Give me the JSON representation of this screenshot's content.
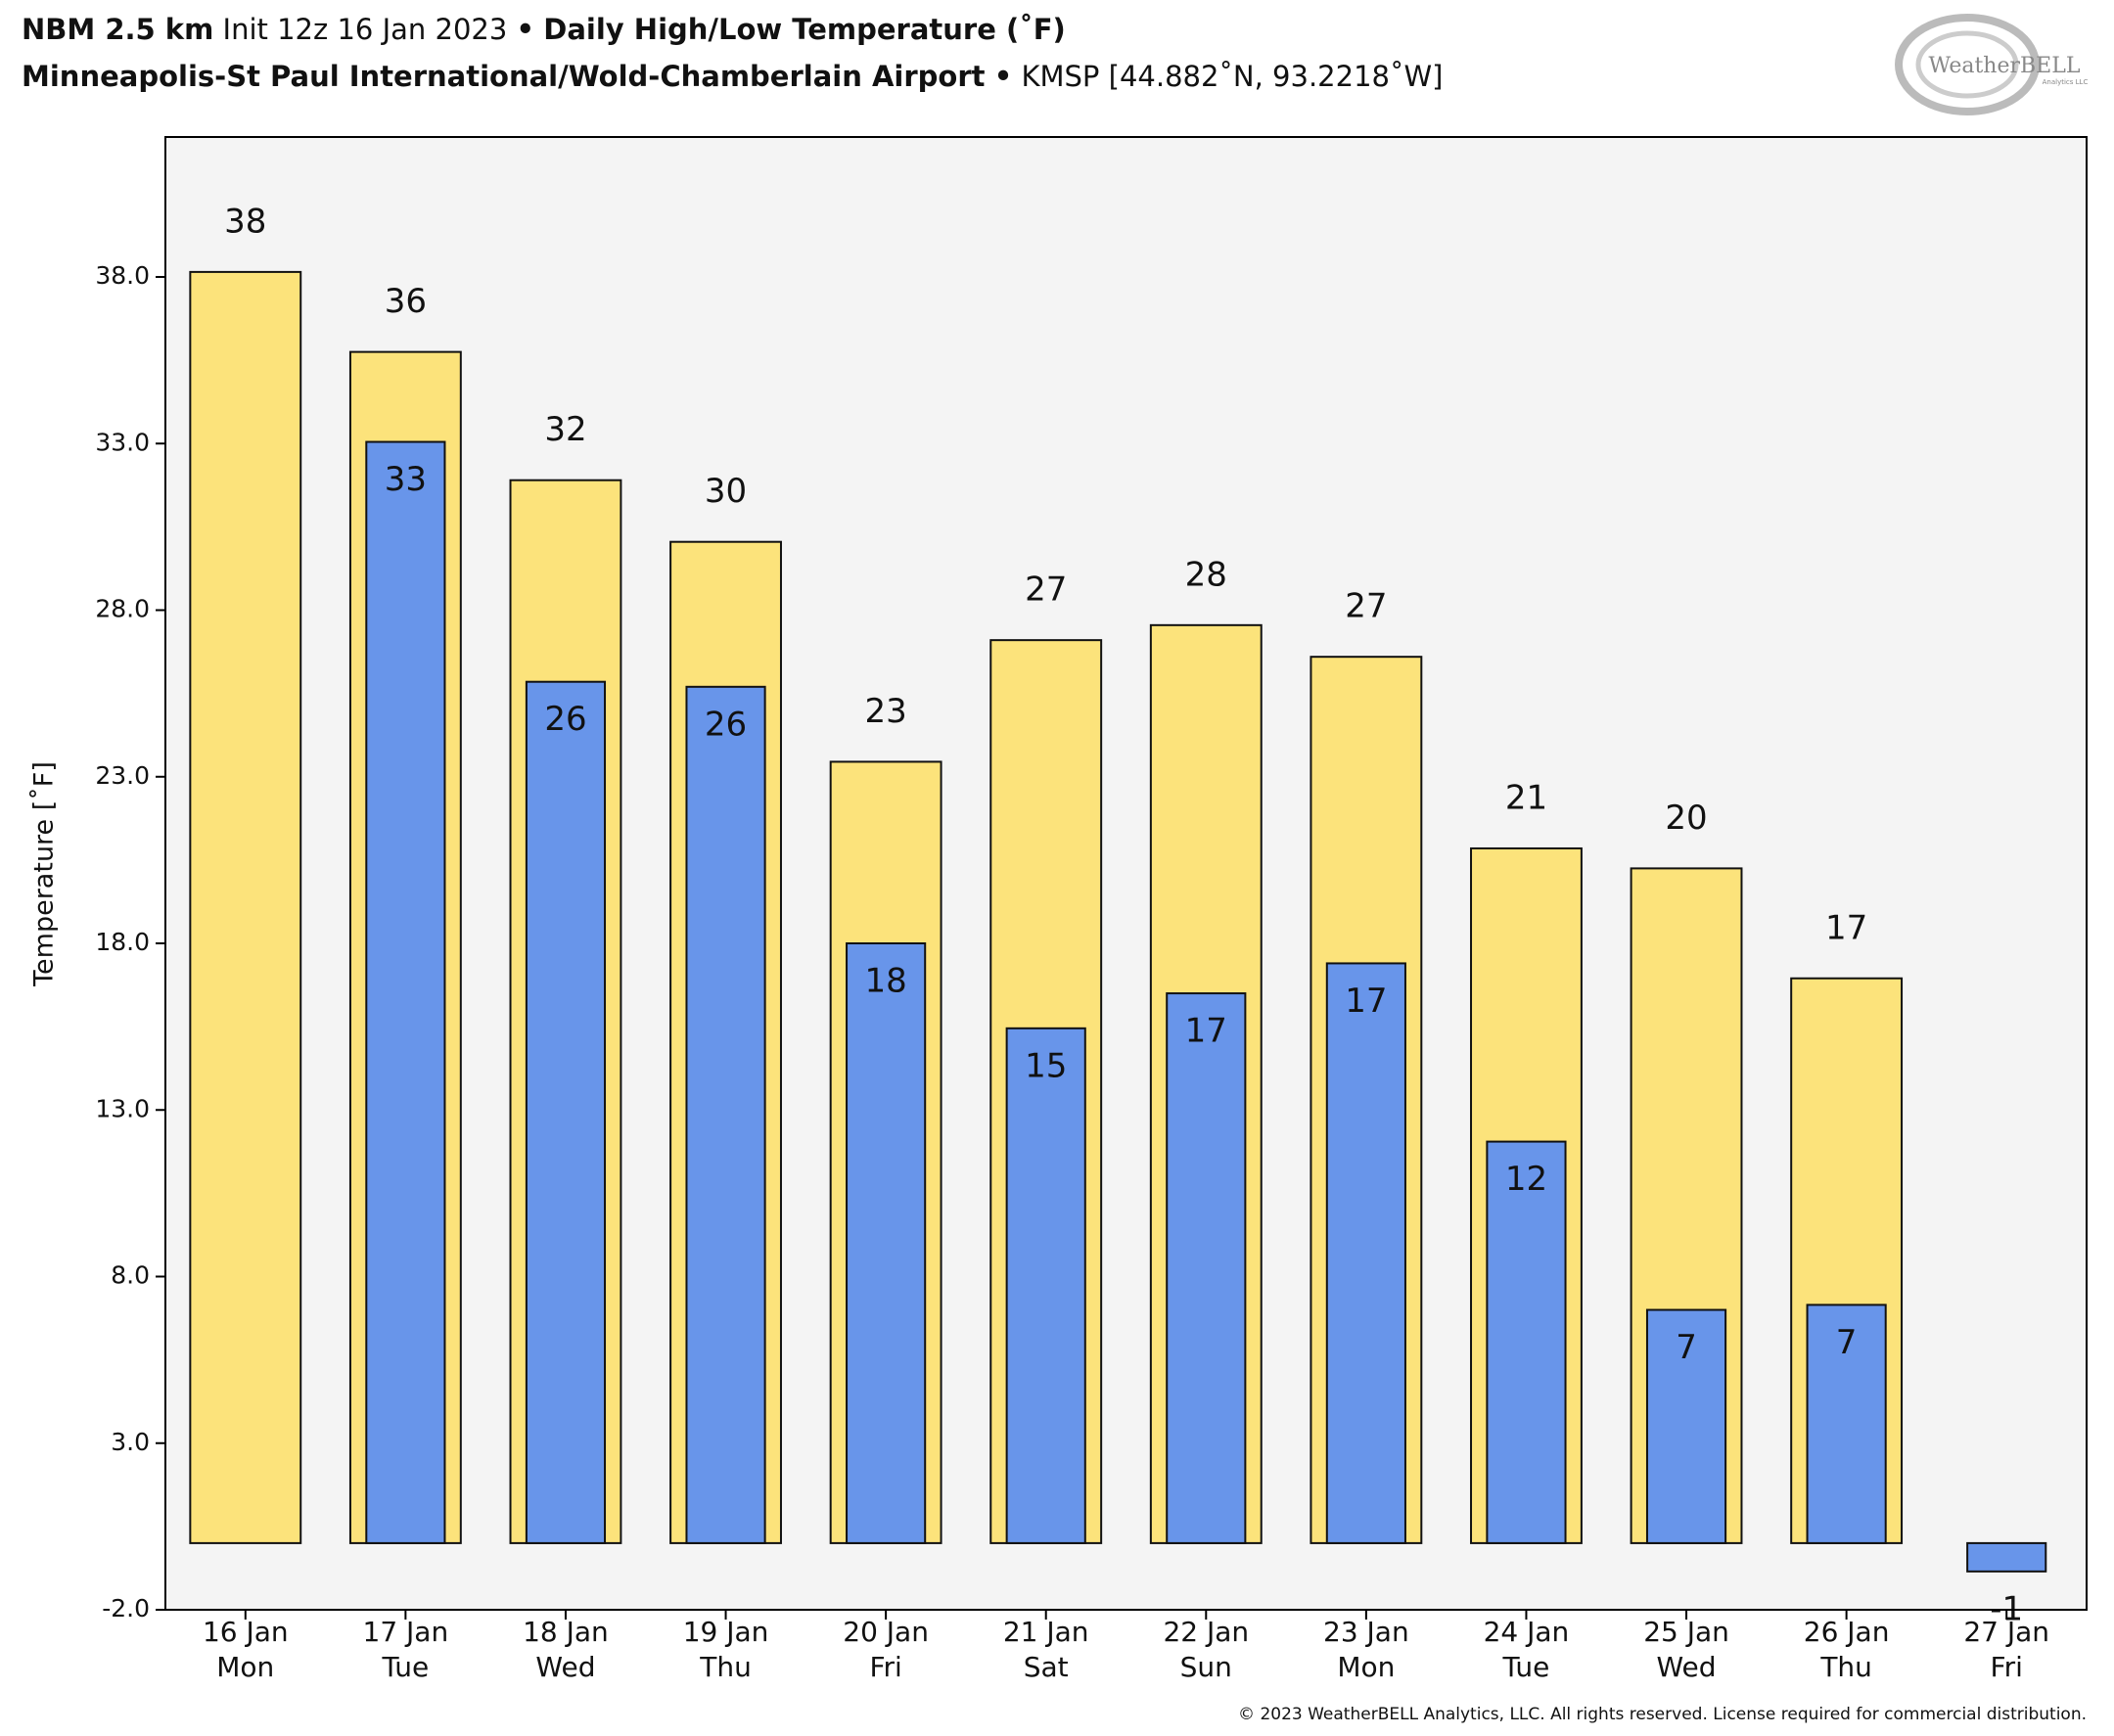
{
  "chart_data": {
    "type": "bar",
    "title_parts": [
      "NBM 2.5 km",
      "Init 12z 16 Jan 2023",
      "•",
      "Daily High/Low Temperature (˚F)"
    ],
    "subtitle_parts": [
      "Minneapolis-St Paul International/Wold-Chamberlain Airport",
      "•",
      "KMSP [44.882˚N, 93.2218˚W]"
    ],
    "y_label": "Temperature [˚F]",
    "logo": "WeatherBELL",
    "logo_sub": "Analytics LLC",
    "copyright": "© 2023 WeatherBELL Analytics, LLC. All rights reserved. License required for commercial distribution.",
    "categories": [
      [
        "16 Jan",
        "Mon"
      ],
      [
        "17 Jan",
        "Tue"
      ],
      [
        "18 Jan",
        "Wed"
      ],
      [
        "19 Jan",
        "Thu"
      ],
      [
        "20 Jan",
        "Fri"
      ],
      [
        "21 Jan",
        "Sat"
      ],
      [
        "22 Jan",
        "Sun"
      ],
      [
        "23 Jan",
        "Mon"
      ],
      [
        "24 Jan",
        "Tue"
      ],
      [
        "25 Jan",
        "Wed"
      ],
      [
        "26 Jan",
        "Thu"
      ],
      [
        "27 Jan",
        "Fri"
      ]
    ],
    "series": [
      {
        "name": "High",
        "color": "#fce37b",
        "values": [
          38.15,
          35.75,
          31.9,
          30.05,
          23.45,
          27.1,
          27.55,
          26.6,
          20.85,
          20.25,
          16.95,
          null
        ],
        "value_labels": [
          "38",
          "36",
          "32",
          "30",
          "23",
          "27",
          "28",
          "27",
          "21",
          "20",
          "17",
          null
        ]
      },
      {
        "name": "Low",
        "color": "#6895ea",
        "values": [
          null,
          33.05,
          25.85,
          25.7,
          18.0,
          15.45,
          16.5,
          17.4,
          12.05,
          7.0,
          7.15,
          -0.85
        ],
        "value_labels": [
          null,
          "33",
          "26",
          "26",
          "18",
          "15",
          "17",
          "17",
          "12",
          "7",
          "7",
          "-1"
        ]
      }
    ],
    "ylim": [
      -2,
      42.2
    ],
    "yticks": [
      {
        "value": -2,
        "label": "-2.0"
      },
      {
        "value": 3,
        "label": "3.0"
      },
      {
        "value": 8,
        "label": "8.0"
      },
      {
        "value": 13,
        "label": "13.0"
      },
      {
        "value": 18,
        "label": "18.0"
      },
      {
        "value": 23,
        "label": "23.0"
      },
      {
        "value": 28,
        "label": "28.0"
      },
      {
        "value": 33,
        "label": "33.0"
      },
      {
        "value": 38,
        "label": "38.0"
      }
    ],
    "background": "#f4f4f4"
  }
}
